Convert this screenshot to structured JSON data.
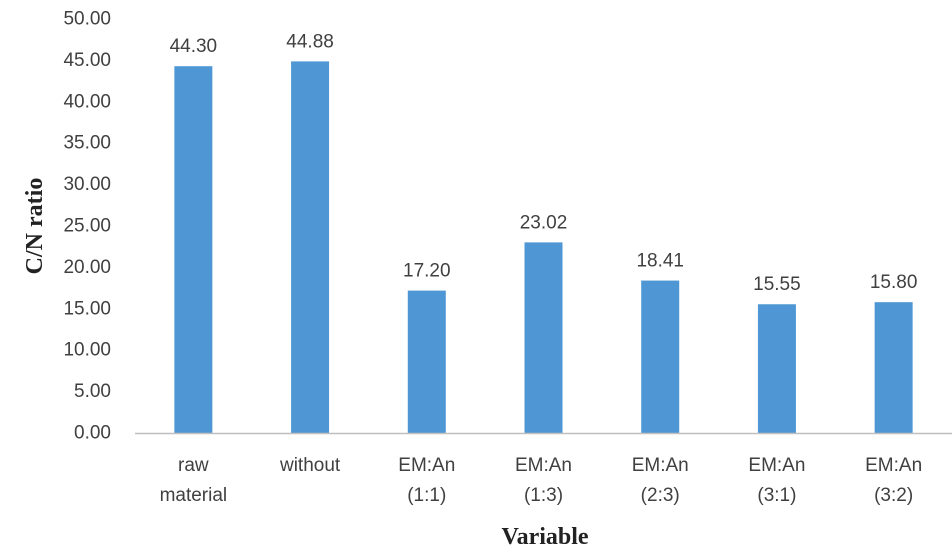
{
  "chart_data": {
    "type": "bar",
    "title": "",
    "xlabel": "Variable",
    "ylabel": "C/N ratio",
    "categories": [
      [
        "raw",
        "material"
      ],
      [
        "without"
      ],
      [
        "EM:An",
        "(1:1)"
      ],
      [
        "EM:An",
        "(1:3)"
      ],
      [
        "EM:An",
        "(2:3)"
      ],
      [
        "EM:An",
        "(3:1)"
      ],
      [
        "EM:An",
        "(3:2)"
      ]
    ],
    "values": [
      44.3,
      44.88,
      17.2,
      23.02,
      18.41,
      15.55,
      15.8
    ],
    "data_labels": [
      "44.30",
      "44.88",
      "17.20",
      "23.02",
      "18.41",
      "15.55",
      "15.80"
    ],
    "ylim": [
      0,
      50
    ],
    "yticks": [
      "0.00",
      "5.00",
      "10.00",
      "15.00",
      "20.00",
      "25.00",
      "30.00",
      "35.00",
      "40.00",
      "45.00",
      "50.00"
    ],
    "grid": false,
    "legend": "none",
    "colors": {
      "bar": "#4E97D4",
      "axis": "#BFBFBF",
      "text": "#404040"
    }
  }
}
